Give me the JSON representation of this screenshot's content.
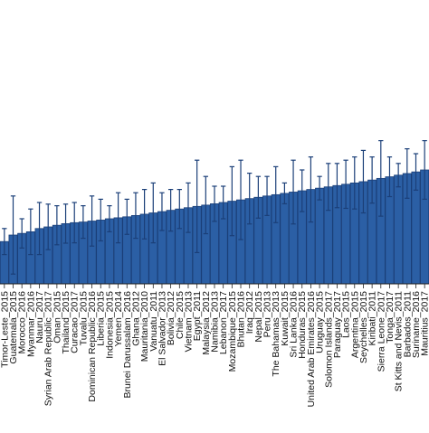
{
  "chart_data": {
    "type": "bar",
    "error_bars": true,
    "grid": false,
    "legend": "none",
    "bar_color": "#2b5fa5",
    "bar_edge_color": "#1b3f78",
    "error_color": "#1b3f78",
    "ylim": [
      0,
      100
    ],
    "categories": [
      "Timor-Leste_2015",
      "Guatemala_2015",
      "Morocco_2016",
      "Myanmar_2016",
      "Nauru_2017",
      "Syrian Arab Republic_2017",
      "Oman_2015",
      "Thailand_2015",
      "Curacao_2017",
      "Tuvalu_2015",
      "Dominican Republic_2016",
      "Liberia_2015",
      "Indonesia_2015",
      "Yemen_2014",
      "Brunei Darussalam_2016",
      "Ghana_2012",
      "Mauritania_2010",
      "Vanuatu_2011",
      "El Salvador_2013",
      "Bolivia_2012",
      "Chile_2015",
      "Vietnam_2013",
      "Egypt_2011",
      "Malaysia_2012",
      "Namibia_2013",
      "Lebanon_2017",
      "Mozambique_2015",
      "Bhutan_2016",
      "Iraq_2012",
      "Nepal_2015",
      "Peru_2013",
      "The Bahamas_2013",
      "Kuwait_2015",
      "Sri Lanka_2016",
      "Honduras_2015",
      "United Arab Emirates_2016",
      "Uruguay_2015",
      "Solomon Islands_2017",
      "Paraguay_2017",
      "Laos_2015",
      "Argentina_2015",
      "Seychelles_2015",
      "Kiribati_2011",
      "Sierra Leone_2017",
      "Tonga_2017",
      "St Kitts and Nevis_2011",
      "Barbados_2011",
      "Suriname_2016",
      "Mauritius_2017"
    ],
    "values": [
      13.0,
      15.0,
      15.5,
      16.0,
      17.0,
      17.5,
      18.0,
      18.5,
      18.8,
      19.0,
      19.3,
      19.6,
      20.0,
      20.3,
      20.6,
      21.0,
      21.4,
      21.8,
      22.2,
      22.6,
      23.0,
      23.4,
      23.8,
      24.2,
      24.6,
      25.0,
      25.4,
      25.8,
      26.2,
      26.6,
      27.0,
      27.4,
      27.8,
      28.2,
      28.6,
      29.0,
      29.4,
      29.8,
      30.2,
      30.6,
      31.0,
      31.4,
      31.9,
      32.4,
      32.9,
      33.4,
      33.9,
      34.4,
      35.0
    ],
    "upper": [
      17.0,
      27.0,
      20.0,
      23.0,
      25.0,
      24.5,
      24.0,
      24.5,
      25.0,
      24.0,
      27.0,
      26.0,
      24.0,
      28.0,
      26.0,
      28.0,
      29.0,
      31.0,
      28.0,
      29.0,
      29.0,
      31.0,
      38.0,
      33.0,
      30.0,
      30.0,
      36.0,
      38.0,
      34.0,
      33.0,
      33.0,
      36.0,
      31.0,
      38.0,
      35.0,
      39.0,
      33.0,
      37.0,
      37.0,
      38.0,
      39.0,
      41.0,
      39.0,
      44.0,
      39.0,
      37.0,
      41.5,
      40.0,
      44.0
    ],
    "lower": [
      9.0,
      3.0,
      11.0,
      9.0,
      9.0,
      10.5,
      12.0,
      12.5,
      12.6,
      14.0,
      11.6,
      13.2,
      16.0,
      12.6,
      15.2,
      14.0,
      13.8,
      12.6,
      16.4,
      16.2,
      17.0,
      15.8,
      9.6,
      15.4,
      19.2,
      20.0,
      14.8,
      13.6,
      18.4,
      20.2,
      21.0,
      18.8,
      24.6,
      18.4,
      22.2,
      19.0,
      25.8,
      22.6,
      23.4,
      23.2,
      23.0,
      21.8,
      24.8,
      20.8,
      26.8,
      29.8,
      26.3,
      28.8,
      26.0
    ]
  }
}
